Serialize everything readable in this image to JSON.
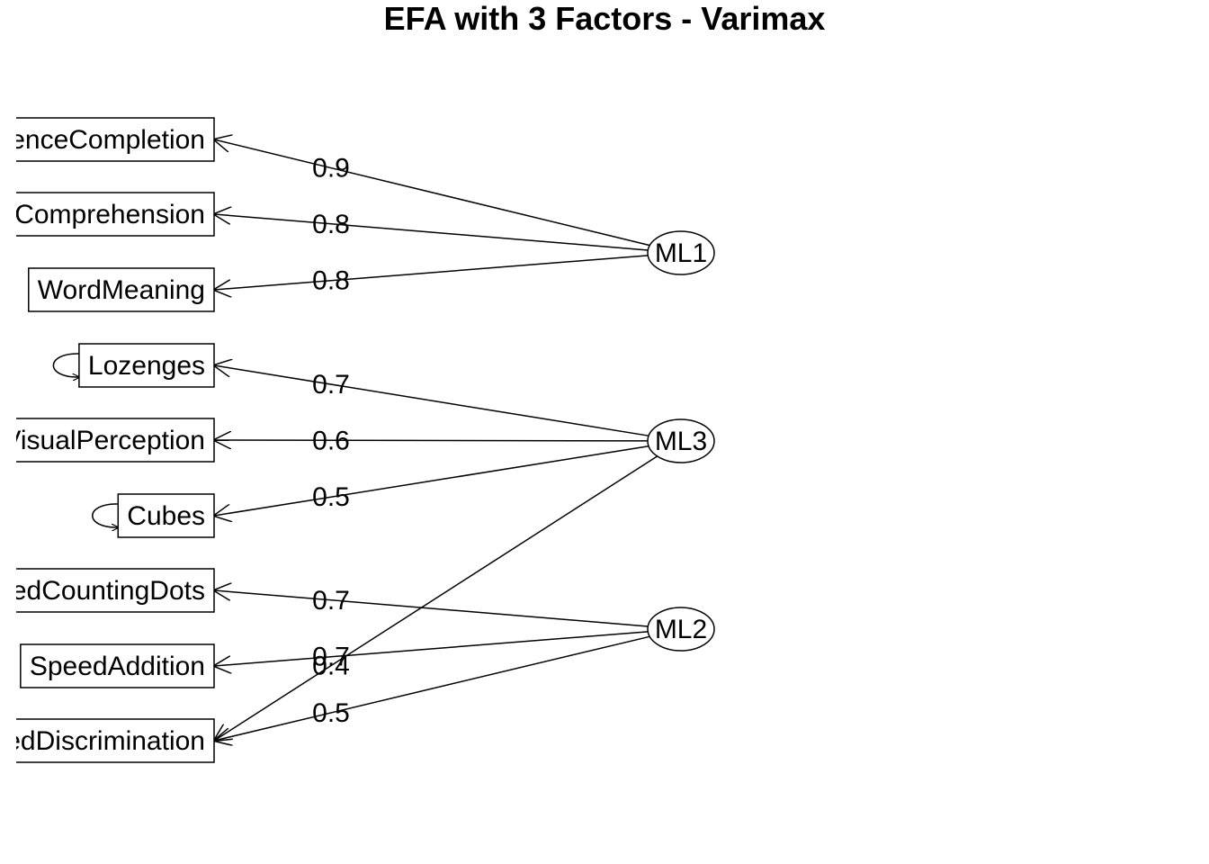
{
  "title": "EFA with 3 Factors - Varimax",
  "variables": [
    {
      "id": "v1",
      "label": "SentenceCompletion"
    },
    {
      "id": "v2",
      "label": "Comprehension"
    },
    {
      "id": "v3",
      "label": "WordMeaning"
    },
    {
      "id": "v4",
      "label": "Lozenges"
    },
    {
      "id": "v5",
      "label": "VisualPerception"
    },
    {
      "id": "v6",
      "label": "Cubes"
    },
    {
      "id": "v7",
      "label": "SpeedCountingDots"
    },
    {
      "id": "v8",
      "label": "SpeedAddition"
    },
    {
      "id": "v9",
      "label": "SpeedDiscrimination"
    }
  ],
  "factors": [
    {
      "id": "f1",
      "label": "ML1"
    },
    {
      "id": "f2",
      "label": "ML3"
    },
    {
      "id": "f3",
      "label": "ML2"
    }
  ],
  "loadings": [
    {
      "from": "f1",
      "to": "v1",
      "label": "0.9"
    },
    {
      "from": "f1",
      "to": "v2",
      "label": "0.8"
    },
    {
      "from": "f1",
      "to": "v3",
      "label": "0.8"
    },
    {
      "from": "f2",
      "to": "v4",
      "label": "0.7"
    },
    {
      "from": "f2",
      "to": "v5",
      "label": "0.6"
    },
    {
      "from": "f2",
      "to": "v6",
      "label": "0.5"
    },
    {
      "from": "f3",
      "to": "v7",
      "label": "0.7"
    },
    {
      "from": "f3",
      "to": "v8",
      "label": "0.7"
    },
    {
      "from": "f3",
      "to": "v9",
      "label": "0.5"
    },
    {
      "from": "f2",
      "to": "v9",
      "label": "0.4"
    }
  ],
  "self_loops": [
    "v4",
    "v6"
  ]
}
